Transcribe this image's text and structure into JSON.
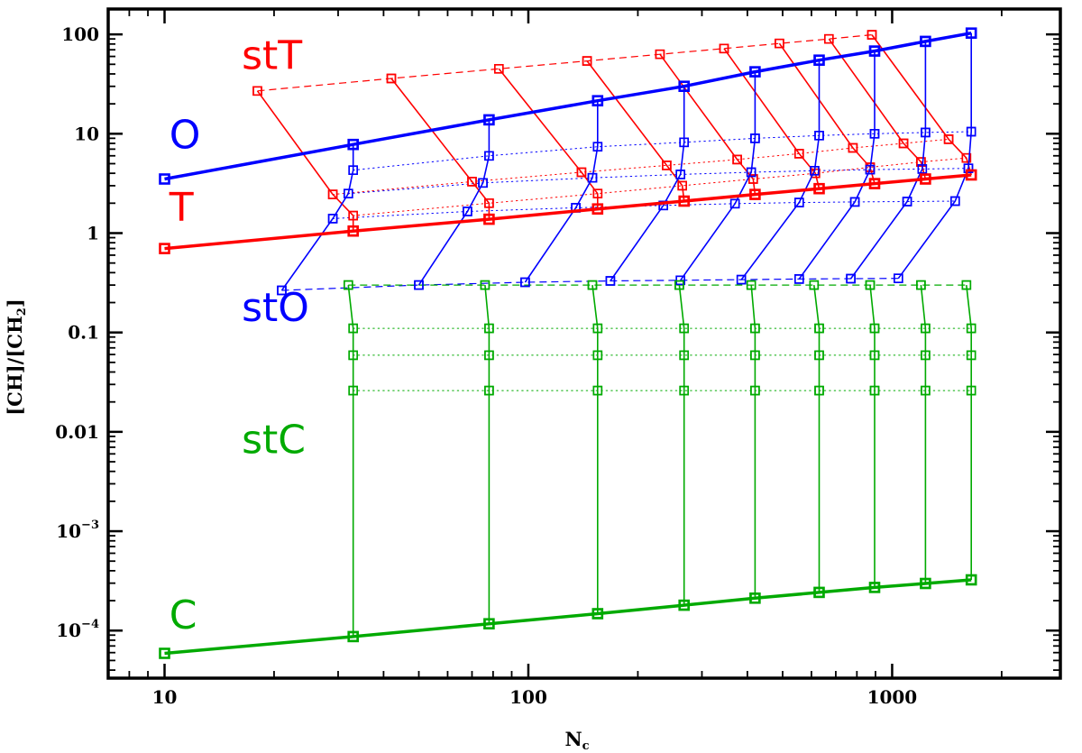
{
  "chart_data": {
    "type": "line",
    "title": "",
    "xlabel": "N",
    "xlabel_sub": "c",
    "ylabel": "[CH]/[CH",
    "ylabel_sub": "2",
    "ylabel_end": "]",
    "x_scale": "log",
    "y_scale": "log",
    "xlim": [
      7,
      2900
    ],
    "ylim": [
      3.32e-05,
      180
    ],
    "colors": {
      "red": "#ff0000",
      "blue": "#0000ff",
      "green": "#00aa00",
      "axis": "#000000"
    },
    "x_ticks": [
      {
        "value": 10,
        "label": "10"
      },
      {
        "value": 100,
        "label": "100"
      },
      {
        "value": 1000,
        "label": "1000"
      }
    ],
    "y_ticks": [
      {
        "value": 100,
        "label": "100"
      },
      {
        "value": 10,
        "label": "10"
      },
      {
        "value": 1,
        "label": "1"
      },
      {
        "value": 0.1,
        "label": "0.1"
      },
      {
        "value": 0.01,
        "label": "0.01"
      },
      {
        "value": 0.001,
        "base": "10",
        "exp": "−3"
      },
      {
        "value": 0.0001,
        "base": "10",
        "exp": "−4"
      }
    ],
    "labels": [
      {
        "text": "stT",
        "x": 16.3,
        "y": 45,
        "color": "red"
      },
      {
        "text": "O",
        "x": 10.3,
        "y": 7.1,
        "color": "blue"
      },
      {
        "text": "T",
        "x": 10.3,
        "y": 1.32,
        "color": "red"
      },
      {
        "text": "stO",
        "x": 16.3,
        "y": 0.13,
        "color": "blue"
      },
      {
        "text": "stC",
        "x": 16.3,
        "y": 0.0061,
        "color": "green"
      },
      {
        "text": "C",
        "x": 10.3,
        "y": 0.000105,
        "color": "green"
      }
    ],
    "series": [
      {
        "name": "O",
        "color": "blue",
        "width": 3.5,
        "dash": "solid",
        "marker_size": 10,
        "x": [
          10,
          33,
          78,
          155,
          268,
          420,
          630,
          895,
          1235,
          1650
        ],
        "y": [
          3.5,
          7.8,
          13.8,
          21.5,
          30,
          42,
          55,
          68,
          85,
          103
        ]
      },
      {
        "name": "T",
        "color": "red",
        "width": 3.5,
        "dash": "solid",
        "marker_size": 10,
        "x": [
          10,
          33,
          78,
          155,
          268,
          420,
          630,
          895,
          1235,
          1650
        ],
        "y": [
          0.7,
          1.05,
          1.38,
          1.75,
          2.1,
          2.45,
          2.8,
          3.15,
          3.5,
          3.85
        ]
      },
      {
        "name": "C",
        "color": "green",
        "width": 3.5,
        "dash": "solid",
        "marker_size": 10,
        "x": [
          10,
          33,
          78,
          155,
          268,
          420,
          630,
          895,
          1235,
          1650
        ],
        "y": [
          5.9e-05,
          8.7e-05,
          0.000117,
          0.000148,
          0.00018,
          0.000212,
          0.000242,
          0.000272,
          0.000298,
          0.000324
        ]
      },
      {
        "name": "stT",
        "color": "red",
        "width": 1.2,
        "dash": "dashed",
        "marker_size": 9,
        "x": [
          18,
          42,
          83,
          145,
          230,
          345,
          490,
          670,
          880
        ],
        "y": [
          27,
          36,
          45,
          54,
          63,
          72,
          81,
          90,
          99
        ]
      },
      {
        "name": "stO",
        "color": "blue",
        "width": 1.2,
        "dash": "dashed",
        "marker_size": 9,
        "x": [
          21,
          50,
          98,
          168,
          262,
          385,
          555,
          770,
          1040
        ],
        "y": [
          0.265,
          0.3,
          0.32,
          0.33,
          0.335,
          0.34,
          0.345,
          0.348,
          0.35
        ]
      },
      {
        "name": "stC",
        "color": "green",
        "width": 1.2,
        "dash": "dashed",
        "marker_size": 9,
        "x": [
          32,
          76,
          150,
          260,
          410,
          610,
          870,
          1200,
          1600
        ],
        "y": [
          0.3,
          0.3,
          0.3,
          0.3,
          0.3,
          0.3,
          0.3,
          0.3,
          0.3
        ]
      },
      {
        "name": "stC-level-1",
        "color": "green",
        "width": 1,
        "dash": "dotted",
        "marker_size": 9,
        "x": [
          33,
          78,
          155,
          268,
          420,
          630,
          895,
          1235,
          1650
        ],
        "y": [
          0.11,
          0.11,
          0.11,
          0.11,
          0.11,
          0.11,
          0.11,
          0.11,
          0.11
        ]
      },
      {
        "name": "stC-level-2",
        "color": "green",
        "width": 1,
        "dash": "dotted",
        "marker_size": 9,
        "x": [
          33,
          78,
          155,
          268,
          420,
          630,
          895,
          1235,
          1650
        ],
        "y": [
          0.059,
          0.059,
          0.059,
          0.059,
          0.059,
          0.059,
          0.059,
          0.059,
          0.059
        ]
      },
      {
        "name": "stC-level-3",
        "color": "green",
        "width": 1,
        "dash": "dotted",
        "marker_size": 9,
        "x": [
          33,
          78,
          155,
          268,
          420,
          630,
          895,
          1235,
          1650
        ],
        "y": [
          0.026,
          0.026,
          0.026,
          0.026,
          0.026,
          0.026,
          0.026,
          0.026,
          0.026
        ]
      },
      {
        "name": "O-level-1",
        "color": "blue",
        "width": 1,
        "dash": "dotted",
        "marker_size": 9,
        "x": [
          33,
          78,
          155,
          268,
          420,
          630,
          895,
          1235,
          1650
        ],
        "y": [
          4.3,
          6,
          7.4,
          8.2,
          9,
          9.6,
          10,
          10.3,
          10.5
        ]
      },
      {
        "name": "O-level-2",
        "color": "blue",
        "width": 1,
        "dash": "dotted",
        "marker_size": 9,
        "x": [
          32,
          75,
          150,
          262,
          410,
          612,
          870,
          1210,
          1620
        ],
        "y": [
          2.5,
          3.2,
          3.6,
          3.9,
          4.1,
          4.25,
          4.35,
          4.42,
          4.48
        ]
      },
      {
        "name": "O-level-3",
        "color": "blue",
        "width": 1,
        "dash": "dotted",
        "marker_size": 9,
        "x": [
          29,
          68,
          135,
          235,
          370,
          555,
          790,
          1100,
          1490
        ],
        "y": [
          1.4,
          1.65,
          1.8,
          1.9,
          1.98,
          2.03,
          2.06,
          2.08,
          2.1
        ]
      },
      {
        "name": "T-level-1",
        "color": "red",
        "width": 1,
        "dash": "dotted",
        "marker_size": 9,
        "x": [
          29,
          70,
          140,
          240,
          375,
          555,
          780,
          1075,
          1430
        ],
        "y": [
          2.45,
          3.3,
          4.1,
          4.8,
          5.5,
          6.3,
          7.2,
          8,
          8.8
        ]
      },
      {
        "name": "T-level-2",
        "color": "red",
        "width": 1,
        "dash": "dotted",
        "marker_size": 9,
        "x": [
          33,
          78,
          155,
          265,
          415,
          615,
          870,
          1200,
          1600
        ],
        "y": [
          1.5,
          2.0,
          2.5,
          3.0,
          3.5,
          4.0,
          4.6,
          5.2,
          5.7
        ]
      },
      {
        "name": "stT-to-T-1",
        "color": "red",
        "width": 1.6,
        "dash": "solid",
        "marker_size": 9,
        "x": [
          18,
          29,
          33,
          33
        ],
        "y": [
          27,
          2.45,
          1.5,
          1.05
        ]
      },
      {
        "name": "stT-to-T-2",
        "color": "red",
        "width": 1.6,
        "dash": "solid",
        "marker_size": 9,
        "x": [
          42,
          70,
          78,
          78
        ],
        "y": [
          36,
          3.3,
          2.0,
          1.38
        ]
      },
      {
        "name": "stT-to-T-3",
        "color": "red",
        "width": 1.6,
        "dash": "solid",
        "marker_size": 9,
        "x": [
          83,
          140,
          155,
          155
        ],
        "y": [
          45,
          4.1,
          2.5,
          1.75
        ]
      },
      {
        "name": "stT-to-T-4",
        "color": "red",
        "width": 1.6,
        "dash": "solid",
        "marker_size": 9,
        "x": [
          145,
          240,
          265,
          268
        ],
        "y": [
          54,
          4.8,
          3.0,
          2.1
        ]
      },
      {
        "name": "stT-to-T-5",
        "color": "red",
        "width": 1.6,
        "dash": "solid",
        "marker_size": 9,
        "x": [
          230,
          375,
          415,
          420
        ],
        "y": [
          63,
          5.5,
          3.5,
          2.45
        ]
      },
      {
        "name": "stT-to-T-6",
        "color": "red",
        "width": 1.6,
        "dash": "solid",
        "marker_size": 9,
        "x": [
          345,
          555,
          615,
          630
        ],
        "y": [
          72,
          6.3,
          4.0,
          2.8
        ]
      },
      {
        "name": "stT-to-T-7",
        "color": "red",
        "width": 1.6,
        "dash": "solid",
        "marker_size": 9,
        "x": [
          490,
          780,
          870,
          895
        ],
        "y": [
          81,
          7.2,
          4.6,
          3.15
        ]
      },
      {
        "name": "stT-to-T-8",
        "color": "red",
        "width": 1.6,
        "dash": "solid",
        "marker_size": 9,
        "x": [
          670,
          1075,
          1200,
          1235
        ],
        "y": [
          90,
          8,
          5.2,
          3.5
        ]
      },
      {
        "name": "stT-to-T-9",
        "color": "red",
        "width": 1.6,
        "dash": "solid",
        "marker_size": 9,
        "x": [
          880,
          1430,
          1600,
          1650
        ],
        "y": [
          99,
          8.8,
          5.7,
          3.85
        ]
      },
      {
        "name": "stO-to-O-1",
        "color": "blue",
        "width": 1.6,
        "dash": "solid",
        "marker_size": 9,
        "x": [
          21,
          29,
          32,
          33,
          33
        ],
        "y": [
          0.265,
          1.4,
          2.5,
          4.3,
          7.8
        ]
      },
      {
        "name": "stO-to-O-2",
        "color": "blue",
        "width": 1.6,
        "dash": "solid",
        "marker_size": 9,
        "x": [
          50,
          68,
          75,
          78,
          78
        ],
        "y": [
          0.3,
          1.65,
          3.2,
          6,
          13.8
        ]
      },
      {
        "name": "stO-to-O-3",
        "color": "blue",
        "width": 1.6,
        "dash": "solid",
        "marker_size": 9,
        "x": [
          98,
          135,
          150,
          155,
          155
        ],
        "y": [
          0.32,
          1.8,
          3.6,
          7.4,
          21.5
        ]
      },
      {
        "name": "stO-to-O-4",
        "color": "blue",
        "width": 1.6,
        "dash": "solid",
        "marker_size": 9,
        "x": [
          168,
          235,
          262,
          268,
          268
        ],
        "y": [
          0.33,
          1.9,
          3.9,
          8.2,
          30
        ]
      },
      {
        "name": "stO-to-O-5",
        "color": "blue",
        "width": 1.6,
        "dash": "solid",
        "marker_size": 9,
        "x": [
          262,
          370,
          410,
          420,
          420
        ],
        "y": [
          0.335,
          1.98,
          4.1,
          9,
          42
        ]
      },
      {
        "name": "stO-to-O-6",
        "color": "blue",
        "width": 1.6,
        "dash": "solid",
        "marker_size": 9,
        "x": [
          385,
          555,
          612,
          630,
          630
        ],
        "y": [
          0.34,
          2.03,
          4.25,
          9.6,
          55
        ]
      },
      {
        "name": "stO-to-O-7",
        "color": "blue",
        "width": 1.6,
        "dash": "solid",
        "marker_size": 9,
        "x": [
          555,
          790,
          870,
          895,
          895
        ],
        "y": [
          0.345,
          2.06,
          4.35,
          10,
          68
        ]
      },
      {
        "name": "stO-to-O-8",
        "color": "blue",
        "width": 1.6,
        "dash": "solid",
        "marker_size": 9,
        "x": [
          770,
          1100,
          1210,
          1235,
          1235
        ],
        "y": [
          0.348,
          2.08,
          4.42,
          10.3,
          85
        ]
      },
      {
        "name": "stO-to-O-9",
        "color": "blue",
        "width": 1.6,
        "dash": "solid",
        "marker_size": 9,
        "x": [
          1040,
          1490,
          1620,
          1650,
          1650
        ],
        "y": [
          0.35,
          2.1,
          4.48,
          10.5,
          103
        ]
      },
      {
        "name": "stC-to-C-1",
        "color": "green",
        "width": 1.6,
        "dash": "solid",
        "marker_size": 9,
        "x": [
          32,
          33,
          33,
          33,
          33
        ],
        "y": [
          0.3,
          0.11,
          0.059,
          0.026,
          8.7e-05
        ]
      },
      {
        "name": "stC-to-C-2",
        "color": "green",
        "width": 1.6,
        "dash": "solid",
        "marker_size": 9,
        "x": [
          76,
          78,
          78,
          78,
          78
        ],
        "y": [
          0.3,
          0.11,
          0.059,
          0.026,
          0.000117
        ]
      },
      {
        "name": "stC-to-C-3",
        "color": "green",
        "width": 1.6,
        "dash": "solid",
        "marker_size": 9,
        "x": [
          150,
          155,
          155,
          155,
          155
        ],
        "y": [
          0.3,
          0.11,
          0.059,
          0.026,
          0.000148
        ]
      },
      {
        "name": "stC-to-C-4",
        "color": "green",
        "width": 1.6,
        "dash": "solid",
        "marker_size": 9,
        "x": [
          260,
          268,
          268,
          268,
          268
        ],
        "y": [
          0.3,
          0.11,
          0.059,
          0.026,
          0.00018
        ]
      },
      {
        "name": "stC-to-C-5",
        "color": "green",
        "width": 1.6,
        "dash": "solid",
        "marker_size": 9,
        "x": [
          410,
          420,
          420,
          420,
          420
        ],
        "y": [
          0.3,
          0.11,
          0.059,
          0.026,
          0.000212
        ]
      },
      {
        "name": "stC-to-C-6",
        "color": "green",
        "width": 1.6,
        "dash": "solid",
        "marker_size": 9,
        "x": [
          610,
          630,
          630,
          630,
          630
        ],
        "y": [
          0.3,
          0.11,
          0.059,
          0.026,
          0.000242
        ]
      },
      {
        "name": "stC-to-C-7",
        "color": "green",
        "width": 1.6,
        "dash": "solid",
        "marker_size": 9,
        "x": [
          870,
          895,
          895,
          895,
          895
        ],
        "y": [
          0.3,
          0.11,
          0.059,
          0.026,
          0.000272
        ]
      },
      {
        "name": "stC-to-C-8",
        "color": "green",
        "width": 1.6,
        "dash": "solid",
        "marker_size": 9,
        "x": [
          1200,
          1235,
          1235,
          1235,
          1235
        ],
        "y": [
          0.3,
          0.11,
          0.059,
          0.026,
          0.000298
        ]
      },
      {
        "name": "stC-to-C-9",
        "color": "green",
        "width": 1.6,
        "dash": "solid",
        "marker_size": 9,
        "x": [
          1600,
          1650,
          1650,
          1650,
          1650
        ],
        "y": [
          0.3,
          0.11,
          0.059,
          0.026,
          0.000324
        ]
      }
    ]
  }
}
